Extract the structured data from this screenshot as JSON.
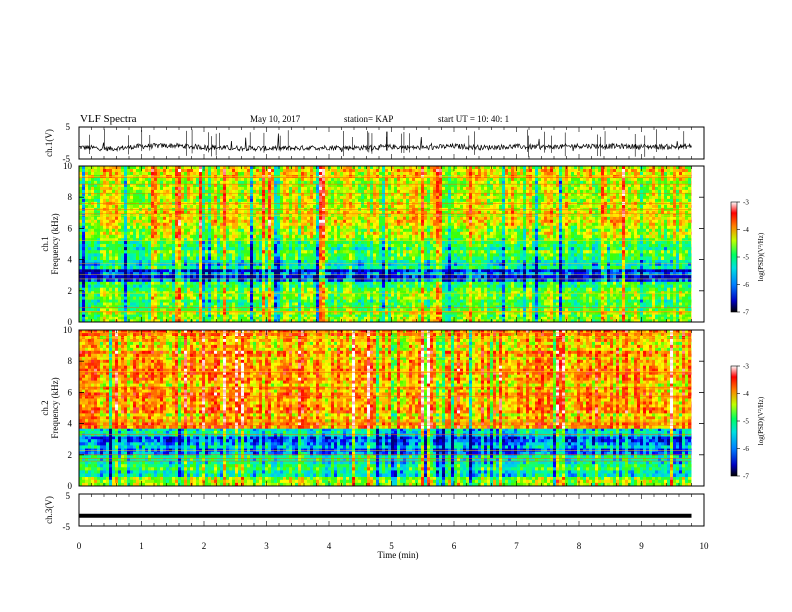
{
  "header": {
    "title": "VLF Spectra",
    "date": "May 10, 2017",
    "station": "station= KAP",
    "start": "start  UT =    10: 40: 1"
  },
  "chart_data": [
    {
      "type": "line",
      "panel": "ch1-waveform",
      "ylabel": "ch.1(V)",
      "ylim": [
        -5,
        5
      ],
      "yticks": [
        "5",
        "-5"
      ],
      "xlim": [
        0,
        10
      ],
      "series": [
        {
          "color": "#000000",
          "x": [
            0,
            0.5,
            1,
            1.5,
            2,
            2.5,
            3,
            3.5,
            4,
            4.5,
            5,
            5.5,
            6,
            6.5,
            7,
            7.5,
            8,
            8.5,
            9,
            9.5,
            9.8
          ],
          "values": [
            -1.3,
            -1.8,
            -1.0,
            -0.8,
            -1.3,
            -1.6,
            -1.7,
            -1.6,
            -1.4,
            -1.5,
            -1.2,
            -1.5,
            -1.0,
            -1.4,
            -1.1,
            -1.3,
            -0.9,
            -1.0,
            -1.1,
            -1.2,
            -1.0
          ]
        }
      ]
    },
    {
      "type": "heatmap",
      "panel": "ch1-spectrogram",
      "ylabel_lines": [
        "ch.1",
        "Frequency  (kHz)"
      ],
      "ylim": [
        0,
        10
      ],
      "yticks": [
        "0",
        "2",
        "4",
        "6",
        "8",
        "10"
      ],
      "xlim": [
        0,
        10
      ],
      "data_end": 9.8,
      "colorbar": {
        "label": "log(PSD)(V²/Hz)",
        "range": [
          -7,
          -3
        ],
        "ticks": [
          "-3",
          "-4",
          "-5",
          "-6",
          "-7"
        ]
      },
      "bands_khz": [
        {
          "f": [
            0,
            0.5
          ],
          "level": -4.9
        },
        {
          "f": [
            0.5,
            2.0
          ],
          "level": -5.0
        },
        {
          "f": [
            2.0,
            2.6
          ],
          "level": -5.3
        },
        {
          "f": [
            2.6,
            3.4
          ],
          "level": -6.4
        },
        {
          "f": [
            3.4,
            4.0
          ],
          "level": -5.6
        },
        {
          "f": [
            4.0,
            5.4
          ],
          "level": -5.2
        },
        {
          "f": [
            5.4,
            10.0
          ],
          "level": -4.6
        }
      ]
    },
    {
      "type": "heatmap",
      "panel": "ch2-spectrogram",
      "ylabel_lines": [
        "ch.2",
        "Frequency  (kHz)"
      ],
      "ylim": [
        0,
        10
      ],
      "yticks": [
        "0",
        "2",
        "4",
        "6",
        "8",
        "10"
      ],
      "xlim": [
        0,
        10
      ],
      "data_end": 9.8,
      "colorbar": {
        "label": "log(PSD)(V²/Hz)",
        "range": [
          -7,
          -3
        ],
        "ticks": [
          "-3",
          "-4",
          "-5",
          "-6",
          "-7"
        ]
      },
      "bands_khz": [
        {
          "f": [
            0,
            0.6
          ],
          "level": -5.0
        },
        {
          "f": [
            0.6,
            2.0
          ],
          "level": -5.4
        },
        {
          "f": [
            2.0,
            3.2
          ],
          "level": -6.1
        },
        {
          "f": [
            3.2,
            3.7
          ],
          "level": -5.5
        },
        {
          "f": [
            3.7,
            10.0
          ],
          "level": -4.2
        }
      ]
    },
    {
      "type": "line",
      "panel": "ch3-waveform",
      "ylabel": "ch.3(V)",
      "ylim": [
        -5,
        5
      ],
      "yticks": [
        "5",
        "-5"
      ],
      "xlim": [
        0,
        10
      ],
      "series": [
        {
          "color": "#000000",
          "x": [
            0,
            9.8
          ],
          "values": [
            -1.8,
            -1.8
          ]
        }
      ]
    }
  ],
  "xaxis": {
    "label": "Time  (min)",
    "ticks": [
      "0",
      "1",
      "2",
      "3",
      "4",
      "5",
      "6",
      "7",
      "8",
      "9",
      "10"
    ]
  },
  "colors": {
    "colormap": [
      "#000080",
      "#0000ff",
      "#00c0ff",
      "#00ffa0",
      "#40ff00",
      "#ffff00",
      "#ff8000",
      "#ff0000",
      "#ffffff"
    ]
  }
}
